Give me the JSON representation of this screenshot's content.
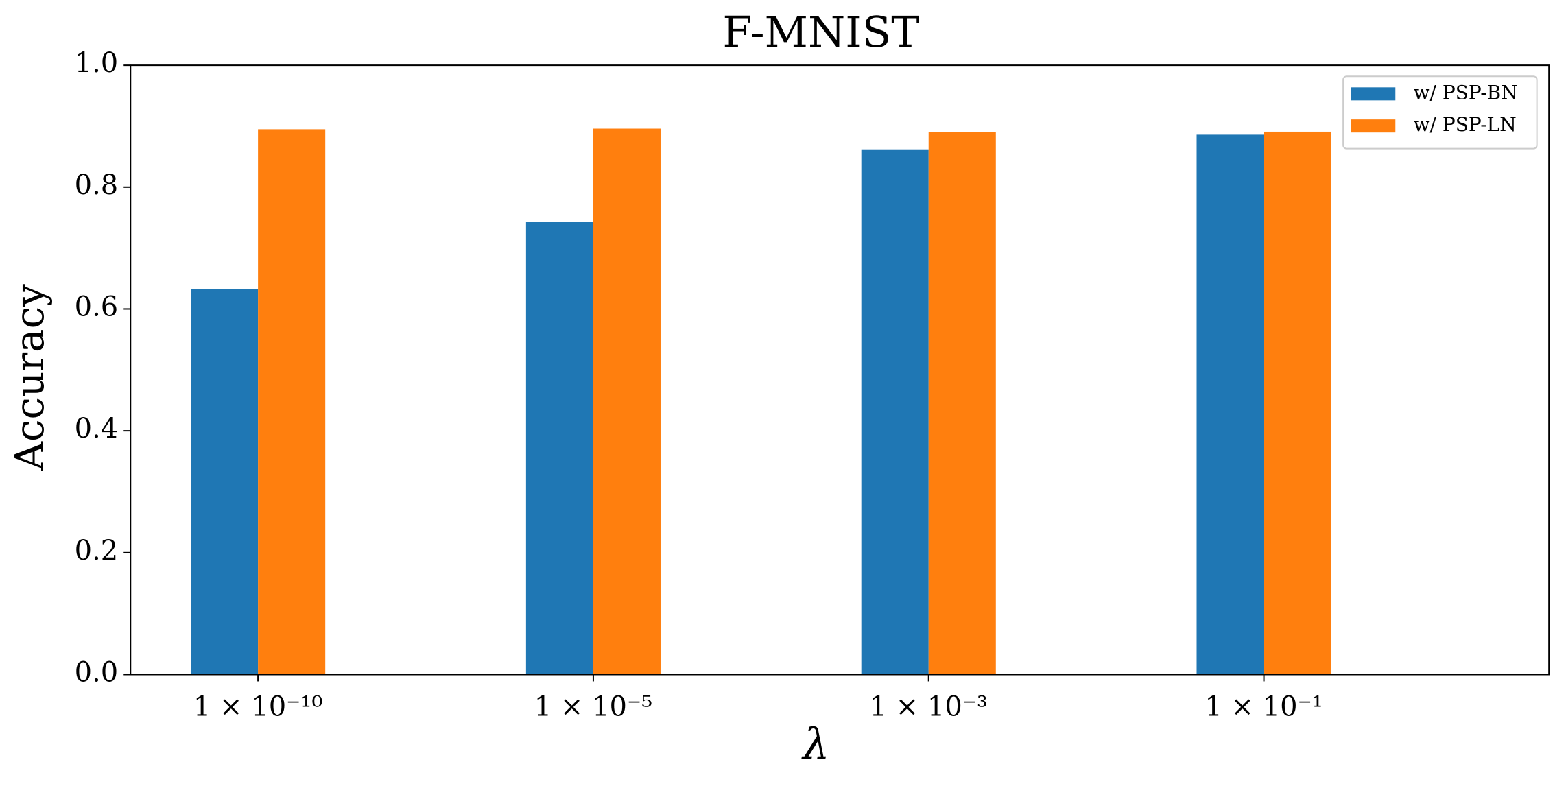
{
  "chart_data": {
    "type": "bar",
    "title": "F-MNIST",
    "y_label": "Accuracy",
    "x_label": "λ",
    "categories": [
      "1 × 10⁻¹⁰",
      "1 × 10⁻⁵",
      "1 × 10⁻³",
      "1 × 10⁻¹"
    ],
    "series": [
      {
        "name": "w/ PSP-BN",
        "color": "#1f77b4",
        "values": [
          0.633,
          0.743,
          0.862,
          0.886
        ]
      },
      {
        "name": "w/ PSP-LN",
        "color": "#ff7f0e",
        "values": [
          0.895,
          0.896,
          0.89,
          0.891
        ]
      }
    ],
    "ylim": [
      0,
      1
    ],
    "yticks": [
      {
        "value": 0,
        "label": "0.0"
      },
      0.2,
      0.4,
      0.6,
      0.8,
      {
        "value": 1,
        "label": "1.0"
      }
    ],
    "legend": "upper right"
  }
}
